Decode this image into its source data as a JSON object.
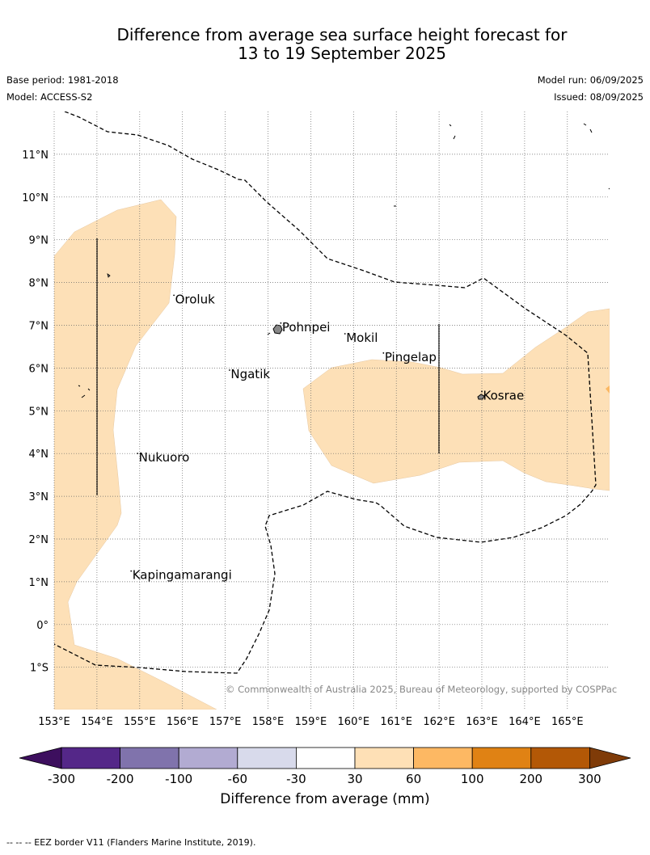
{
  "title_line1": "Difference from average sea surface height forecast for",
  "title_line2": "13 to 19 September 2025",
  "base_period": "Base period: 1981-2018",
  "model": "Model: ACCESS-S2",
  "model_run": "Model run: 06/09/2025",
  "issued": "Issued: 08/09/2025",
  "map": {
    "lon_labels": [
      "153°E",
      "154°E",
      "155°E",
      "156°E",
      "157°E",
      "158°E",
      "159°E",
      "160°E",
      "161°E",
      "162°E",
      "163°E",
      "164°E",
      "165°E"
    ],
    "lat_labels": [
      "11°N",
      "10°N",
      "9°N",
      "8°N",
      "7°N",
      "6°N",
      "5°N",
      "4°N",
      "3°N",
      "2°N",
      "1°N",
      "0°",
      "1°S"
    ],
    "places": [
      {
        "name": "Oroluk",
        "lon": 155.8,
        "lat": 7.55
      },
      {
        "name": "Pohnpei",
        "lon": 158.3,
        "lat": 6.9
      },
      {
        "name": "Mokil",
        "lon": 159.8,
        "lat": 6.65
      },
      {
        "name": "Pingelap",
        "lon": 160.7,
        "lat": 6.2
      },
      {
        "name": "Ngatik",
        "lon": 157.1,
        "lat": 5.8
      },
      {
        "name": "Kosrae",
        "lon": 163.0,
        "lat": 5.3
      },
      {
        "name": "Nukuoro",
        "lon": 154.95,
        "lat": 3.85
      },
      {
        "name": "Kapingamarangi",
        "lon": 154.8,
        "lat": 1.1
      }
    ],
    "copyright": "© Commonwealth of Australia 2025, Bureau of Meteorology, supported by COSPPac"
  },
  "colorbar": {
    "ticks": [
      "-300",
      "-200",
      "-100",
      "-60",
      "-30",
      "30",
      "60",
      "100",
      "200",
      "300"
    ],
    "colors": [
      "#3d0f5e",
      "#542788",
      "#8073ac",
      "#b2abd2",
      "#d8daeb",
      "#ffffff",
      "#fee0b6",
      "#fdb863",
      "#e08214",
      "#b35806",
      "#7f3b08"
    ],
    "label": "Difference from average (mm)"
  },
  "footer": "--  --  -- EEZ border V11 (Flanders Marine Institute, 2019)."
}
